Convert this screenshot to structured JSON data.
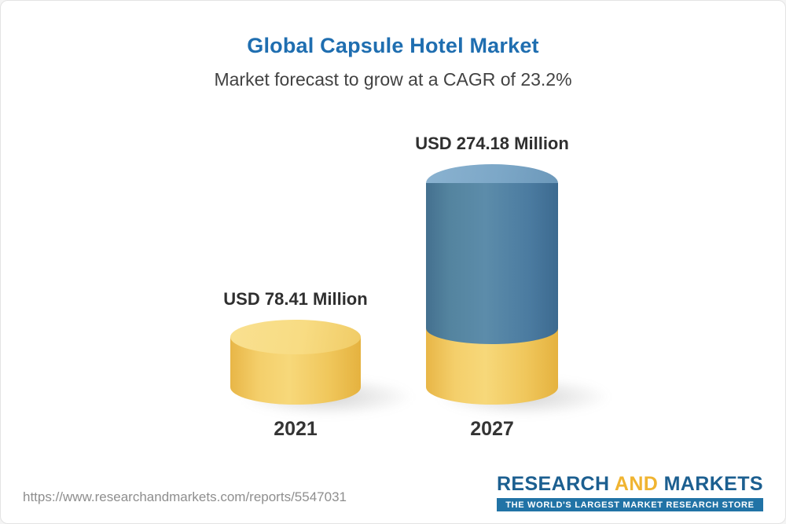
{
  "header": {
    "title": "Global Capsule Hotel Market",
    "subtitle": "Market forecast to grow at a CAGR of 23.2%"
  },
  "chart_data": {
    "type": "bar",
    "categories": [
      "2021",
      "2027"
    ],
    "values": [
      78.41,
      274.18
    ],
    "unit": "USD Million",
    "value_labels": [
      "USD 78.41 Million",
      "USD 274.18 Million"
    ],
    "title": "Global Capsule Hotel Market",
    "subtitle": "Market forecast to grow at a CAGR of 23.2%",
    "cagr_percent": 23.2,
    "legend_position": "none",
    "grid": false,
    "colors": {
      "bar_2021": "#f2cb62",
      "bar_2027_top_segment": "#4e7ea5",
      "bar_2027_base_segment": "#f2cb62",
      "title_text": "#1f6eb0"
    }
  },
  "footer": {
    "url": "https://www.researchandmarkets.com/reports/5547031",
    "logo": {
      "part_research": "RESEARCH ",
      "part_and": "AND",
      "part_markets": " MARKETS",
      "tagline": "THE WORLD'S LARGEST MARKET RESEARCH STORE"
    }
  }
}
